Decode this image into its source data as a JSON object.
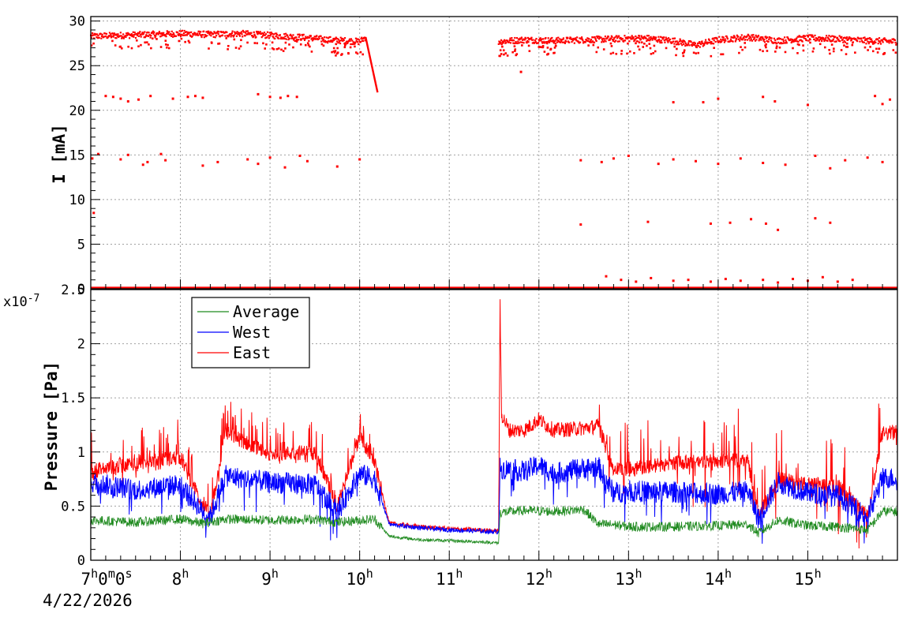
{
  "chart_data": [
    {
      "type": "scatter",
      "title": "",
      "ylabel": "I [mA]",
      "ylim": [
        0,
        30.5
      ],
      "yticks": [
        0,
        5,
        10,
        15,
        20,
        25,
        30
      ],
      "color": "#ff0000",
      "series": [
        {
          "segments": [
            {
              "x": [
                "07:00",
                "07:20",
                "07:40",
                "08:00",
                "08:20",
                "08:40",
                "09:00",
                "09:20",
                "09:40",
                "10:00",
                "10:04"
              ],
              "y": [
                28.3,
                28.4,
                28.5,
                28.6,
                28.5,
                28.6,
                28.4,
                28.2,
                27.9,
                27.7,
                28.2
              ]
            },
            {
              "x": [
                "10:04",
                "10:12"
              ],
              "y": [
                28.2,
                22.0
              ]
            },
            {
              "x": [
                "11:33",
                "11:50",
                "12:10",
                "12:30",
                "12:50",
                "13:10",
                "13:30",
                "13:45",
                "14:00",
                "14:20",
                "14:40",
                "15:00",
                "15:20",
                "15:40",
                "16:00"
              ],
              "y": [
                27.7,
                27.9,
                27.8,
                27.9,
                28.0,
                28.1,
                27.8,
                27.3,
                27.9,
                28.2,
                27.8,
                28.1,
                28.0,
                27.8,
                27.7
              ]
            }
          ],
          "outliers": [
            {
              "x": [
                "07:10",
                "07:15",
                "07:20",
                "07:25",
                "07:32",
                "07:40",
                "07:55",
                "08:05",
                "08:10",
                "08:15",
                "08:52",
                "09:00",
                "09:07",
                "09:12",
                "09:18",
                "11:48",
                "13:30",
                "13:50",
                "14:00",
                "14:30",
                "14:38",
                "15:00",
                "15:45",
                "15:50",
                "15:55"
              ],
              "y": [
                21.6,
                21.5,
                21.3,
                21.0,
                21.2,
                21.6,
                21.3,
                21.5,
                21.6,
                21.4,
                21.8,
                21.5,
                21.4,
                21.6,
                21.5,
                24.3,
                20.9,
                20.9,
                21.3,
                21.5,
                21.0,
                20.6,
                21.6,
                20.7,
                21.2
              ]
            },
            {
              "x": [
                "07:01",
                "07:05",
                "07:20",
                "07:25",
                "07:35",
                "07:38",
                "07:47",
                "07:50",
                "08:15",
                "08:25",
                "08:45",
                "08:52",
                "09:00",
                "09:10",
                "09:20",
                "09:25",
                "09:45",
                "10:00",
                "12:28",
                "12:42",
                "12:50",
                "13:00",
                "13:20",
                "13:30",
                "13:45",
                "14:00",
                "14:15",
                "14:30",
                "14:45",
                "15:05",
                "15:15",
                "15:25",
                "15:40",
                "15:50"
              ],
              "y": [
                14.6,
                15.1,
                14.5,
                15.0,
                13.9,
                14.2,
                15.1,
                14.4,
                13.8,
                14.2,
                14.5,
                14.0,
                14.7,
                13.6,
                14.9,
                14.3,
                13.7,
                14.5,
                14.4,
                14.2,
                14.6,
                14.9,
                14.0,
                14.5,
                14.3,
                14.0,
                14.6,
                14.1,
                13.9,
                14.9,
                13.5,
                14.4,
                14.7,
                14.2
              ]
            },
            {
              "x": [
                "07:02",
                "12:28",
                "13:13",
                "13:55",
                "14:08",
                "14:22",
                "14:32",
                "14:40",
                "15:05",
                "15:15"
              ],
              "y": [
                8.5,
                7.2,
                7.5,
                7.3,
                7.4,
                7.8,
                7.3,
                6.6,
                7.9,
                7.4
              ]
            },
            {
              "x": [
                "12:45",
                "12:55",
                "13:05",
                "13:15",
                "13:30",
                "13:40",
                "13:55",
                "14:05",
                "14:15",
                "14:30",
                "14:40",
                "14:50",
                "15:00",
                "15:10",
                "15:20",
                "15:30"
              ],
              "y": [
                1.4,
                1.0,
                0.8,
                1.2,
                0.9,
                1.0,
                0.8,
                1.1,
                0.9,
                1.0,
                0.7,
                1.1,
                0.9,
                1.3,
                0.8,
                1.0
              ]
            }
          ],
          "baseline": {
            "x": [
              "07:00",
              "16:00"
            ],
            "y": [
              0.1,
              0.1
            ]
          }
        }
      ]
    },
    {
      "type": "line",
      "title": "",
      "ylabel": "Pressure [Pa]",
      "y_multiplier": "x10^-7",
      "ylim": [
        0,
        2.5
      ],
      "yticks": [
        0,
        0.5,
        1,
        1.5,
        2,
        2.5
      ],
      "legend": {
        "position": "top-left"
      },
      "series": [
        {
          "name": "Average",
          "color": "#1f8a1f",
          "x": [
            "07:00",
            "07:30",
            "08:00",
            "08:15",
            "08:30",
            "09:00",
            "09:30",
            "09:45",
            "10:00",
            "10:10",
            "10:20",
            "10:40",
            "11:00",
            "11:20",
            "11:33",
            "11:34",
            "11:50",
            "12:10",
            "12:30",
            "12:40",
            "12:50",
            "13:00",
            "13:30",
            "14:00",
            "14:20",
            "14:27",
            "14:40",
            "15:00",
            "15:20",
            "15:40",
            "15:50",
            "16:00"
          ],
          "y": [
            0.37,
            0.35,
            0.38,
            0.34,
            0.38,
            0.37,
            0.38,
            0.35,
            0.37,
            0.38,
            0.22,
            0.19,
            0.18,
            0.17,
            0.16,
            0.44,
            0.46,
            0.45,
            0.47,
            0.33,
            0.33,
            0.31,
            0.31,
            0.32,
            0.33,
            0.25,
            0.37,
            0.32,
            0.31,
            0.28,
            0.45,
            0.45
          ]
        },
        {
          "name": "West",
          "color": "#0000ff",
          "x": [
            "07:00",
            "07:30",
            "08:00",
            "08:15",
            "08:20",
            "08:30",
            "09:00",
            "09:30",
            "09:45",
            "10:00",
            "10:10",
            "10:20",
            "10:40",
            "11:00",
            "11:20",
            "11:33",
            "11:34",
            "11:50",
            "12:00",
            "12:10",
            "12:30",
            "12:40",
            "12:50",
            "13:00",
            "13:30",
            "14:00",
            "14:20",
            "14:27",
            "14:40",
            "15:00",
            "15:20",
            "15:40",
            "15:50",
            "16:00"
          ],
          "y": [
            0.72,
            0.65,
            0.7,
            0.45,
            0.4,
            0.78,
            0.72,
            0.7,
            0.45,
            0.8,
            0.75,
            0.33,
            0.3,
            0.28,
            0.27,
            0.26,
            0.85,
            0.82,
            0.88,
            0.8,
            0.85,
            0.86,
            0.62,
            0.64,
            0.63,
            0.61,
            0.64,
            0.38,
            0.72,
            0.62,
            0.6,
            0.4,
            0.76,
            0.76
          ]
        },
        {
          "name": "East",
          "color": "#ff0000",
          "x": [
            "07:00",
            "07:30",
            "08:00",
            "08:15",
            "08:20",
            "08:30",
            "09:00",
            "09:30",
            "09:45",
            "10:00",
            "10:10",
            "10:20",
            "10:40",
            "11:00",
            "11:20",
            "11:33",
            "11:34",
            "11:35",
            "11:40",
            "11:50",
            "12:00",
            "12:10",
            "12:30",
            "12:40",
            "12:50",
            "13:00",
            "13:30",
            "14:00",
            "14:20",
            "14:27",
            "14:40",
            "15:00",
            "15:20",
            "15:40",
            "15:50",
            "16:00"
          ],
          "y": [
            0.82,
            0.9,
            0.95,
            0.5,
            0.4,
            1.18,
            0.98,
            1.0,
            0.5,
            1.15,
            0.9,
            0.34,
            0.31,
            0.29,
            0.28,
            0.27,
            2.35,
            1.35,
            1.2,
            1.2,
            1.3,
            1.2,
            1.22,
            1.24,
            0.84,
            0.84,
            0.9,
            0.92,
            0.92,
            0.4,
            0.75,
            0.7,
            0.69,
            0.4,
            1.17,
            1.18
          ]
        }
      ]
    }
  ],
  "x_axis": {
    "range": [
      "07:00",
      "16:00"
    ],
    "tick_labels": [
      {
        "at": "07:00",
        "base": "7",
        "parts": [
          [
            "h",
            true
          ],
          [
            "0",
            false
          ],
          [
            "m",
            true
          ],
          [
            "0",
            false
          ],
          [
            "s",
            true
          ]
        ]
      },
      {
        "at": "08:00",
        "base": "8",
        "parts": [
          [
            "h",
            true
          ]
        ]
      },
      {
        "at": "09:00",
        "base": "9",
        "parts": [
          [
            "h",
            true
          ]
        ]
      },
      {
        "at": "10:00",
        "base": "10",
        "parts": [
          [
            "h",
            true
          ]
        ]
      },
      {
        "at": "11:00",
        "base": "11",
        "parts": [
          [
            "h",
            true
          ]
        ]
      },
      {
        "at": "12:00",
        "base": "12",
        "parts": [
          [
            "h",
            true
          ]
        ]
      },
      {
        "at": "13:00",
        "base": "13",
        "parts": [
          [
            "h",
            true
          ]
        ]
      },
      {
        "at": "14:00",
        "base": "14",
        "parts": [
          [
            "h",
            true
          ]
        ]
      },
      {
        "at": "15:00",
        "base": "15",
        "parts": [
          [
            "h",
            true
          ]
        ]
      }
    ],
    "date": "4/22/2026",
    "grid": true
  }
}
